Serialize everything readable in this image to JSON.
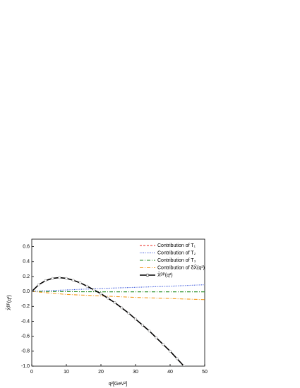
{
  "chart_data": {
    "type": "line",
    "xlabel": "q²[GeV²]",
    "ylabel": "X̂ᴰᴾ(q²)",
    "xlim": [
      0,
      50
    ],
    "xticks": [
      0,
      10,
      20,
      30,
      40,
      50
    ],
    "ylim": [
      -1,
      0.7
    ],
    "yticks": [
      {
        "value": -1,
        "label": "-1.0"
      },
      -0.8,
      -0.6,
      -0.4,
      -0.2,
      {
        "value": 0,
        "label": "0.0"
      },
      0.2,
      0.4,
      0.6
    ],
    "legend": "upper right",
    "series": [
      {
        "name": "Contribution of T₁",
        "color": "#e8261c",
        "dash": "3,2",
        "x": [
          0,
          2,
          4,
          6,
          8,
          10,
          12,
          14,
          16,
          18,
          20,
          22,
          24,
          26,
          28,
          30,
          32,
          34,
          36,
          38,
          40,
          42,
          44
        ],
        "values": [
          0,
          0.09,
          0.145,
          0.175,
          0.185,
          0.175,
          0.15,
          0.115,
          0.07,
          0.02,
          -0.03,
          -0.09,
          -0.15,
          -0.22,
          -0.29,
          -0.37,
          -0.45,
          -0.53,
          -0.62,
          -0.71,
          -0.8,
          -0.9,
          -1.0
        ]
      },
      {
        "name": "Contribution of T₂",
        "color": "#1f3fd6",
        "dash": "1,1.5",
        "x": [
          0,
          10,
          20,
          30,
          40,
          50
        ],
        "values": [
          0,
          0.02,
          0.04,
          0.055,
          0.07,
          0.09
        ]
      },
      {
        "name": "Contribution of T₃",
        "color": "#1e8a1e",
        "dash": "5,2,1,2",
        "x": [
          0,
          10,
          20,
          30,
          40,
          50
        ],
        "values": [
          0,
          -0.003,
          -0.005,
          -0.005,
          -0.005,
          -0.005
        ]
      },
      {
        "name": "Contribution of δX̂(q²)",
        "color": "#f39a1e",
        "dash": "5,2,1,2",
        "x": [
          0,
          10,
          20,
          30,
          40,
          50
        ],
        "values": [
          0,
          -0.04,
          -0.06,
          -0.08,
          -0.095,
          -0.11
        ]
      },
      {
        "name": "X̂ᴰᴾ(q²)",
        "color": "#000000",
        "marker": "circle",
        "x": [
          0,
          2,
          4,
          6,
          8,
          10,
          12,
          14,
          16,
          18,
          20,
          22,
          24,
          26,
          28,
          30,
          32,
          34,
          36,
          38,
          40,
          42,
          44
        ],
        "values": [
          0,
          0.09,
          0.145,
          0.175,
          0.185,
          0.175,
          0.15,
          0.115,
          0.07,
          0.02,
          -0.03,
          -0.09,
          -0.15,
          -0.22,
          -0.29,
          -0.37,
          -0.45,
          -0.53,
          -0.62,
          -0.71,
          -0.8,
          -0.9,
          -1.0
        ]
      }
    ]
  }
}
